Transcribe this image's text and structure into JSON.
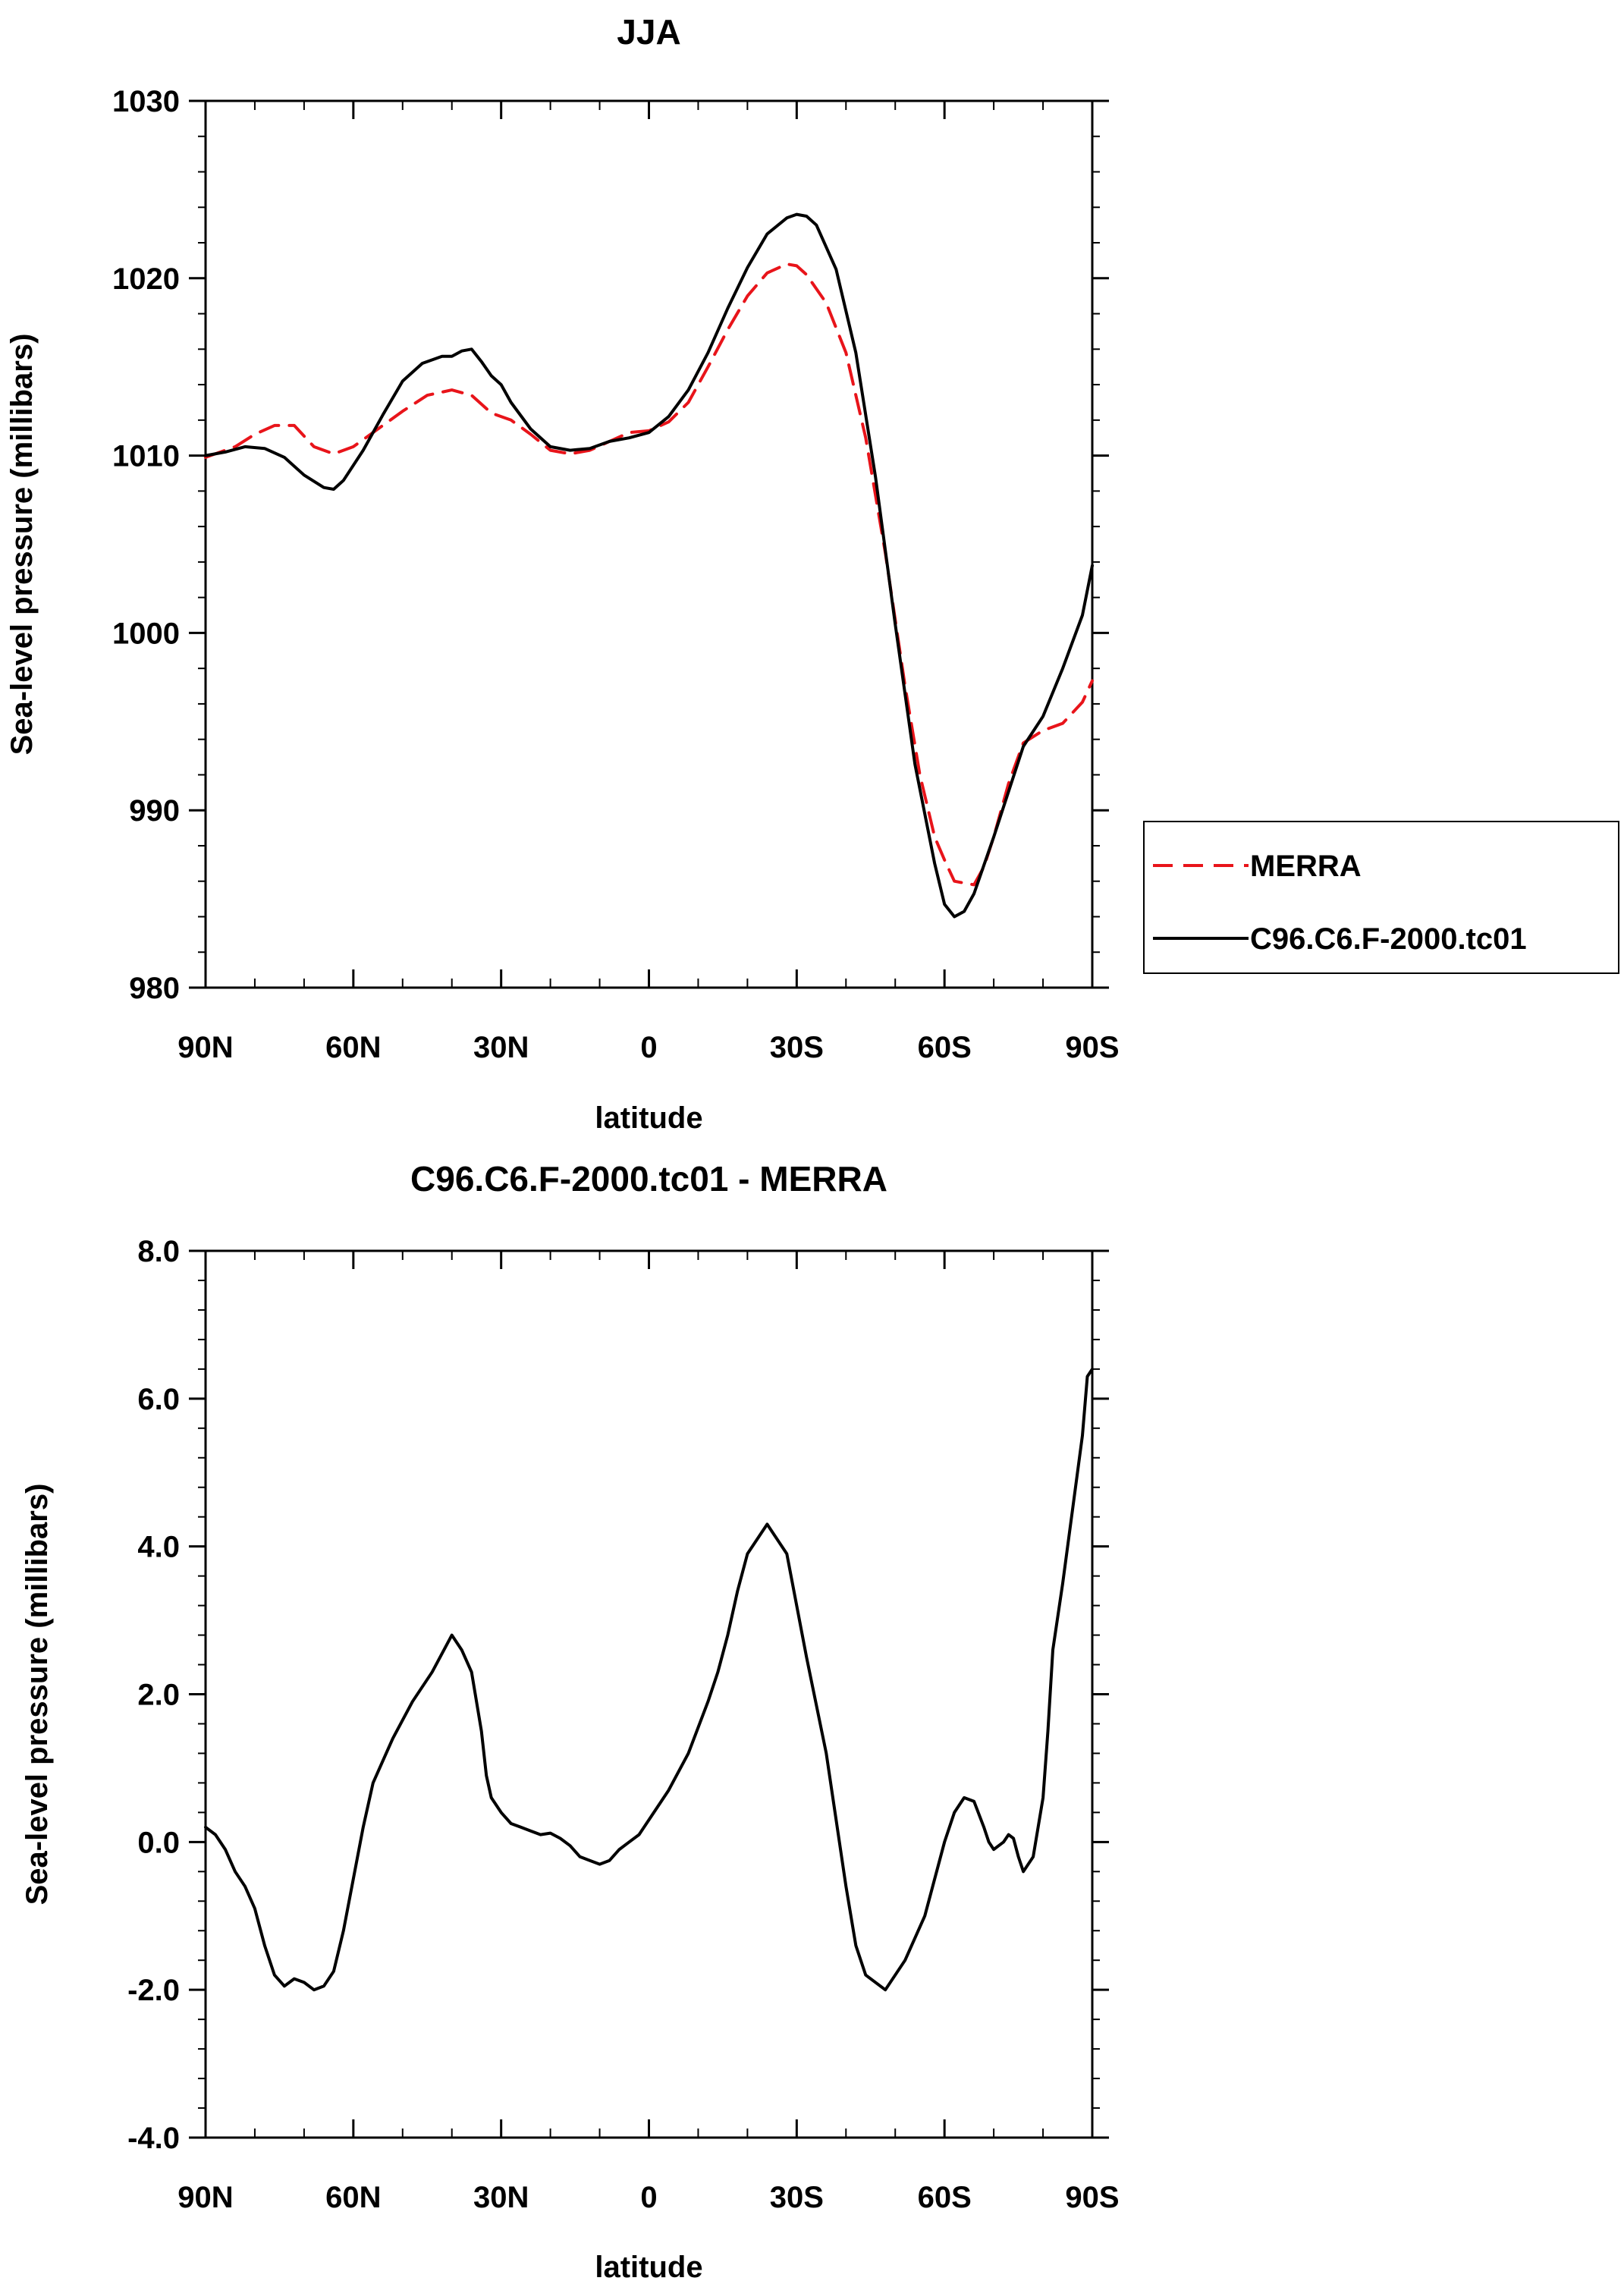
{
  "chart_data": [
    {
      "type": "line",
      "title": "JJA",
      "xlabel": "latitude",
      "ylabel": "Sea-level pressure (millibars)",
      "xlim": [
        90,
        -90
      ],
      "ylim": [
        980,
        1030
      ],
      "xticks": [
        {
          "value": 90,
          "label": "90N"
        },
        {
          "value": 60,
          "label": "60N"
        },
        {
          "value": 30,
          "label": "30N"
        },
        {
          "value": 0,
          "label": "0"
        },
        {
          "value": -30,
          "label": "30S"
        },
        {
          "value": -60,
          "label": "60S"
        },
        {
          "value": -90,
          "label": "90S"
        }
      ],
      "yticks": [
        {
          "value": 1030,
          "label": "1030"
        },
        {
          "value": 1020,
          "label": "1020"
        },
        {
          "value": 1010,
          "label": "1010"
        },
        {
          "value": 1000,
          "label": "1000"
        },
        {
          "value": 990,
          "label": "990"
        },
        {
          "value": 980,
          "label": "980"
        }
      ],
      "legend": {
        "position": "right",
        "entries": [
          "MERRA",
          "C96.C6.F-2000.tc01"
        ]
      },
      "series": [
        {
          "name": "MERRA",
          "color": "#e8141a",
          "dash": "dashed",
          "x": [
            90,
            84,
            80,
            76,
            72,
            68,
            64,
            60,
            55,
            50,
            45,
            40,
            36,
            32,
            28,
            24,
            20,
            16,
            12,
            8,
            4,
            0,
            -4,
            -8,
            -12,
            -16,
            -20,
            -24,
            -28,
            -30,
            -32,
            -36,
            -40,
            -44,
            -48,
            -52,
            -55,
            -58,
            -60,
            -62,
            -64,
            -66,
            -68,
            -70,
            -73,
            -76,
            -80,
            -84,
            -88,
            -90
          ],
          "values": [
            1009.9,
            1010.5,
            1011.2,
            1011.7,
            1011.7,
            1010.5,
            1010.1,
            1010.5,
            1011.5,
            1012.5,
            1013.4,
            1013.7,
            1013.4,
            1012.4,
            1012.0,
            1011.2,
            1010.3,
            1010.1,
            1010.3,
            1010.8,
            1011.3,
            1011.4,
            1011.9,
            1013.0,
            1015.0,
            1017.1,
            1019.0,
            1020.3,
            1020.8,
            1020.7,
            1020.2,
            1018.6,
            1015.8,
            1011.0,
            1004.5,
            997.0,
            992.0,
            988.5,
            987.2,
            986.0,
            985.9,
            985.8,
            986.8,
            988.5,
            991.5,
            993.8,
            994.5,
            994.9,
            996.1,
            997.3
          ]
        },
        {
          "name": "C96.C6.F-2000.tc01",
          "color": "#000000",
          "dash": "solid",
          "x": [
            90,
            86,
            82,
            78,
            74,
            70,
            66,
            64,
            62,
            58,
            54,
            50,
            46,
            42,
            40,
            38,
            36,
            34,
            32,
            30,
            28,
            24,
            20,
            16,
            12,
            8,
            4,
            0,
            -4,
            -8,
            -12,
            -16,
            -20,
            -24,
            -28,
            -30,
            -32,
            -34,
            -38,
            -42,
            -46,
            -50,
            -54,
            -58,
            -60,
            -62,
            -64,
            -66,
            -68,
            -70,
            -72,
            -76,
            -80,
            -84,
            -88,
            -90
          ],
          "values": [
            1010.0,
            1010.2,
            1010.5,
            1010.4,
            1009.9,
            1008.9,
            1008.2,
            1008.1,
            1008.6,
            1010.3,
            1012.3,
            1014.2,
            1015.2,
            1015.6,
            1015.6,
            1015.9,
            1016.0,
            1015.3,
            1014.5,
            1014.0,
            1013.0,
            1011.5,
            1010.5,
            1010.3,
            1010.4,
            1010.8,
            1011.0,
            1011.3,
            1012.2,
            1013.7,
            1015.8,
            1018.3,
            1020.6,
            1022.5,
            1023.4,
            1023.6,
            1023.5,
            1023.0,
            1020.5,
            1015.8,
            1008.8,
            1000.5,
            992.6,
            987.0,
            984.7,
            984.0,
            984.3,
            985.3,
            986.9,
            988.5,
            990.2,
            993.6,
            995.3,
            998.0,
            1001.0,
            1003.8
          ]
        }
      ]
    },
    {
      "type": "line",
      "title": "C96.C6.F-2000.tc01 - MERRA",
      "xlabel": "latitude",
      "ylabel": "Sea-level pressure (millibars)",
      "xlim": [
        90,
        -90
      ],
      "ylim": [
        -4.0,
        8.0
      ],
      "xticks": [
        {
          "value": 90,
          "label": "90N"
        },
        {
          "value": 60,
          "label": "60N"
        },
        {
          "value": 30,
          "label": "30N"
        },
        {
          "value": 0,
          "label": "0"
        },
        {
          "value": -30,
          "label": "30S"
        },
        {
          "value": -60,
          "label": "60S"
        },
        {
          "value": -90,
          "label": "90S"
        }
      ],
      "yticks": [
        {
          "value": 8.0,
          "label": "8.0"
        },
        {
          "value": 6.0,
          "label": "6.0"
        },
        {
          "value": 4.0,
          "label": "4.0"
        },
        {
          "value": 2.0,
          "label": "2.0"
        },
        {
          "value": 0.0,
          "label": "0.0"
        },
        {
          "value": -2.0,
          "label": "-2.0"
        },
        {
          "value": -4.0,
          "label": "-4.0"
        }
      ],
      "series": [
        {
          "name": "C96.C6.F-2000.tc01 - MERRA",
          "color": "#000000",
          "dash": "solid",
          "x": [
            90,
            88,
            86,
            84,
            82,
            80,
            78,
            76,
            74,
            72,
            70,
            68,
            66,
            64,
            62,
            60,
            58,
            56,
            52,
            48,
            44,
            40,
            38,
            36,
            34,
            33,
            32,
            30,
            28,
            26,
            24,
            22,
            20,
            18,
            16,
            14,
            12,
            10,
            8,
            6,
            4,
            2,
            0,
            -2,
            -4,
            -8,
            -12,
            -14,
            -16,
            -18,
            -20,
            -24,
            -28,
            -32,
            -36,
            -38,
            -40,
            -42,
            -44,
            -48,
            -52,
            -56,
            -60,
            -62,
            -64,
            -66,
            -68,
            -69,
            -70,
            -71,
            -72,
            -73,
            -74,
            -75,
            -76,
            -78,
            -80,
            -81,
            -82,
            -84,
            -86,
            -88,
            -89,
            -90
          ],
          "values": [
            0.2,
            0.1,
            -0.1,
            -0.4,
            -0.6,
            -0.9,
            -1.4,
            -1.8,
            -1.95,
            -1.85,
            -1.9,
            -2.0,
            -1.95,
            -1.75,
            -1.2,
            -0.5,
            0.2,
            0.8,
            1.4,
            1.9,
            2.3,
            2.8,
            2.6,
            2.3,
            1.5,
            0.9,
            0.6,
            0.4,
            0.25,
            0.2,
            0.15,
            0.1,
            0.12,
            0.05,
            -0.05,
            -0.2,
            -0.25,
            -0.3,
            -0.25,
            -0.1,
            0.0,
            0.1,
            0.3,
            0.5,
            0.7,
            1.2,
            1.9,
            2.3,
            2.8,
            3.4,
            3.9,
            4.3,
            3.9,
            2.5,
            1.2,
            0.3,
            -0.6,
            -1.4,
            -1.8,
            -2.0,
            -1.6,
            -1.0,
            0.0,
            0.4,
            0.6,
            0.55,
            0.2,
            0.0,
            -0.1,
            -0.05,
            0.0,
            0.1,
            0.05,
            -0.2,
            -0.4,
            -0.2,
            0.6,
            1.5,
            2.6,
            3.5,
            4.5,
            5.5,
            6.3,
            6.4
          ]
        }
      ]
    }
  ]
}
